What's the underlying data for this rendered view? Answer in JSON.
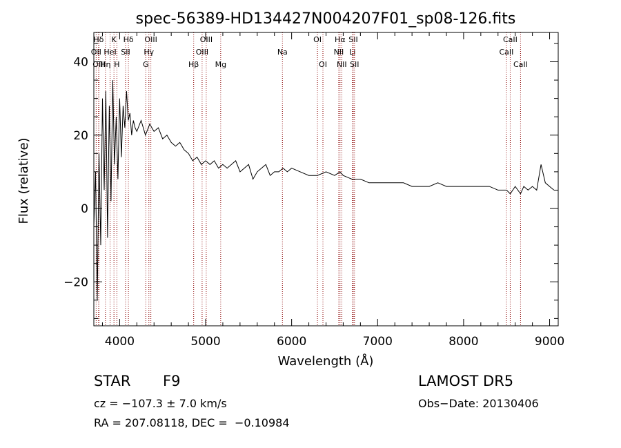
{
  "chart_data": {
    "type": "line",
    "title": "spec-56389-HD134427N004207F01_sp08-126.fits",
    "xlabel": "Wavelength (Å)",
    "ylabel": "Flux (relative)",
    "xlim": [
      3700,
      9100
    ],
    "ylim": [
      -32,
      48
    ],
    "xticks": [
      4000,
      5000,
      6000,
      7000,
      8000,
      9000
    ],
    "yticks": [
      -20,
      0,
      20,
      40
    ],
    "grid": false,
    "line_color": "#000000",
    "marker_color": "#8b0000",
    "series": [
      {
        "x": [
          3700,
          3720,
          3740,
          3760,
          3780,
          3800,
          3820,
          3840,
          3860,
          3880,
          3900,
          3920,
          3940,
          3960,
          3980,
          4000,
          4020,
          4040,
          4060,
          4080,
          4100,
          4120,
          4140,
          4160,
          4180,
          4200,
          4250,
          4300,
          4350,
          4400,
          4450,
          4500,
          4550,
          4600,
          4650,
          4700,
          4750,
          4800,
          4850,
          4900,
          4950,
          5000,
          5050,
          5100,
          5150,
          5200,
          5250,
          5300,
          5350,
          5400,
          5450,
          5500,
          5550,
          5600,
          5650,
          5700,
          5750,
          5800,
          5850,
          5900,
          5950,
          6000,
          6100,
          6200,
          6300,
          6400,
          6500,
          6563,
          6600,
          6700,
          6800,
          6900,
          7000,
          7100,
          7200,
          7300,
          7400,
          7500,
          7600,
          7700,
          7800,
          7900,
          8000,
          8100,
          8200,
          8300,
          8400,
          8500,
          8542,
          8600,
          8662,
          8700,
          8750,
          8800,
          8850,
          8900,
          8950,
          9000,
          9050
        ],
        "y": [
          -5,
          10,
          -25,
          15,
          -10,
          30,
          5,
          32,
          -8,
          28,
          2,
          35,
          12,
          25,
          8,
          30,
          14,
          28,
          22,
          32,
          24,
          26,
          20,
          24,
          22,
          21,
          24,
          20,
          23,
          21,
          22,
          19,
          20,
          18,
          17,
          18,
          16,
          15,
          13,
          14,
          12,
          13,
          12,
          13,
          11,
          12,
          11,
          12,
          13,
          10,
          11,
          12,
          8,
          10,
          11,
          12,
          9,
          10,
          10,
          11,
          10,
          11,
          10,
          9,
          9,
          10,
          9,
          10,
          9,
          8,
          8,
          7,
          7,
          7,
          7,
          7,
          6,
          6,
          6,
          7,
          6,
          6,
          6,
          6,
          6,
          6,
          5,
          5,
          4,
          6,
          4,
          6,
          5,
          6,
          5,
          12,
          7,
          6,
          5
        ]
      }
    ],
    "line_markers": [
      {
        "label": "Hδ",
        "x": 3755,
        "row": 0
      },
      {
        "label": "K",
        "x": 3934,
        "row": 0
      },
      {
        "label": "Hδ",
        "x": 4102,
        "row": 0
      },
      {
        "label": "OIII",
        "x": 4363,
        "row": 0
      },
      {
        "label": "OIII",
        "x": 5007,
        "row": 0
      },
      {
        "label": "OI",
        "x": 6300,
        "row": 0
      },
      {
        "label": "Hα",
        "x": 6563,
        "row": 0
      },
      {
        "label": "SII",
        "x": 6717,
        "row": 0
      },
      {
        "label": "CaII",
        "x": 8542,
        "row": 0
      },
      {
        "label": "OII",
        "x": 3727,
        "row": 1
      },
      {
        "label": "HeI",
        "x": 3889,
        "row": 1
      },
      {
        "label": "SII",
        "x": 4069,
        "row": 1
      },
      {
        "label": "Hγ",
        "x": 4340,
        "row": 1
      },
      {
        "label": "OIII",
        "x": 4959,
        "row": 1
      },
      {
        "label": "Na",
        "x": 5893,
        "row": 1
      },
      {
        "label": "NII",
        "x": 6548,
        "row": 1
      },
      {
        "label": "Li",
        "x": 6707,
        "row": 1
      },
      {
        "label": "CaII",
        "x": 8498,
        "row": 1
      },
      {
        "label": "OIII",
        "x": 3760,
        "row": 2
      },
      {
        "label": "Hη",
        "x": 3835,
        "row": 2
      },
      {
        "label": "H",
        "x": 3968,
        "row": 2
      },
      {
        "label": "G",
        "x": 4304,
        "row": 2
      },
      {
        "label": "Hβ",
        "x": 4861,
        "row": 2
      },
      {
        "label": "Mg",
        "x": 5175,
        "row": 2
      },
      {
        "label": "OI",
        "x": 6364,
        "row": 2
      },
      {
        "label": "NII",
        "x": 6583,
        "row": 2
      },
      {
        "label": "SII",
        "x": 6731,
        "row": 2
      },
      {
        "label": "CaII",
        "x": 8662,
        "row": 2
      }
    ]
  },
  "info": {
    "object_type": "STAR",
    "subclass": "F9",
    "survey": "LAMOST DR5",
    "cz": "cz = −107.3 ± 7.0 km/s",
    "obs_date": "Obs−Date: 20130406",
    "coords": "RA = 207.08118, DEC =  −0.10984"
  }
}
